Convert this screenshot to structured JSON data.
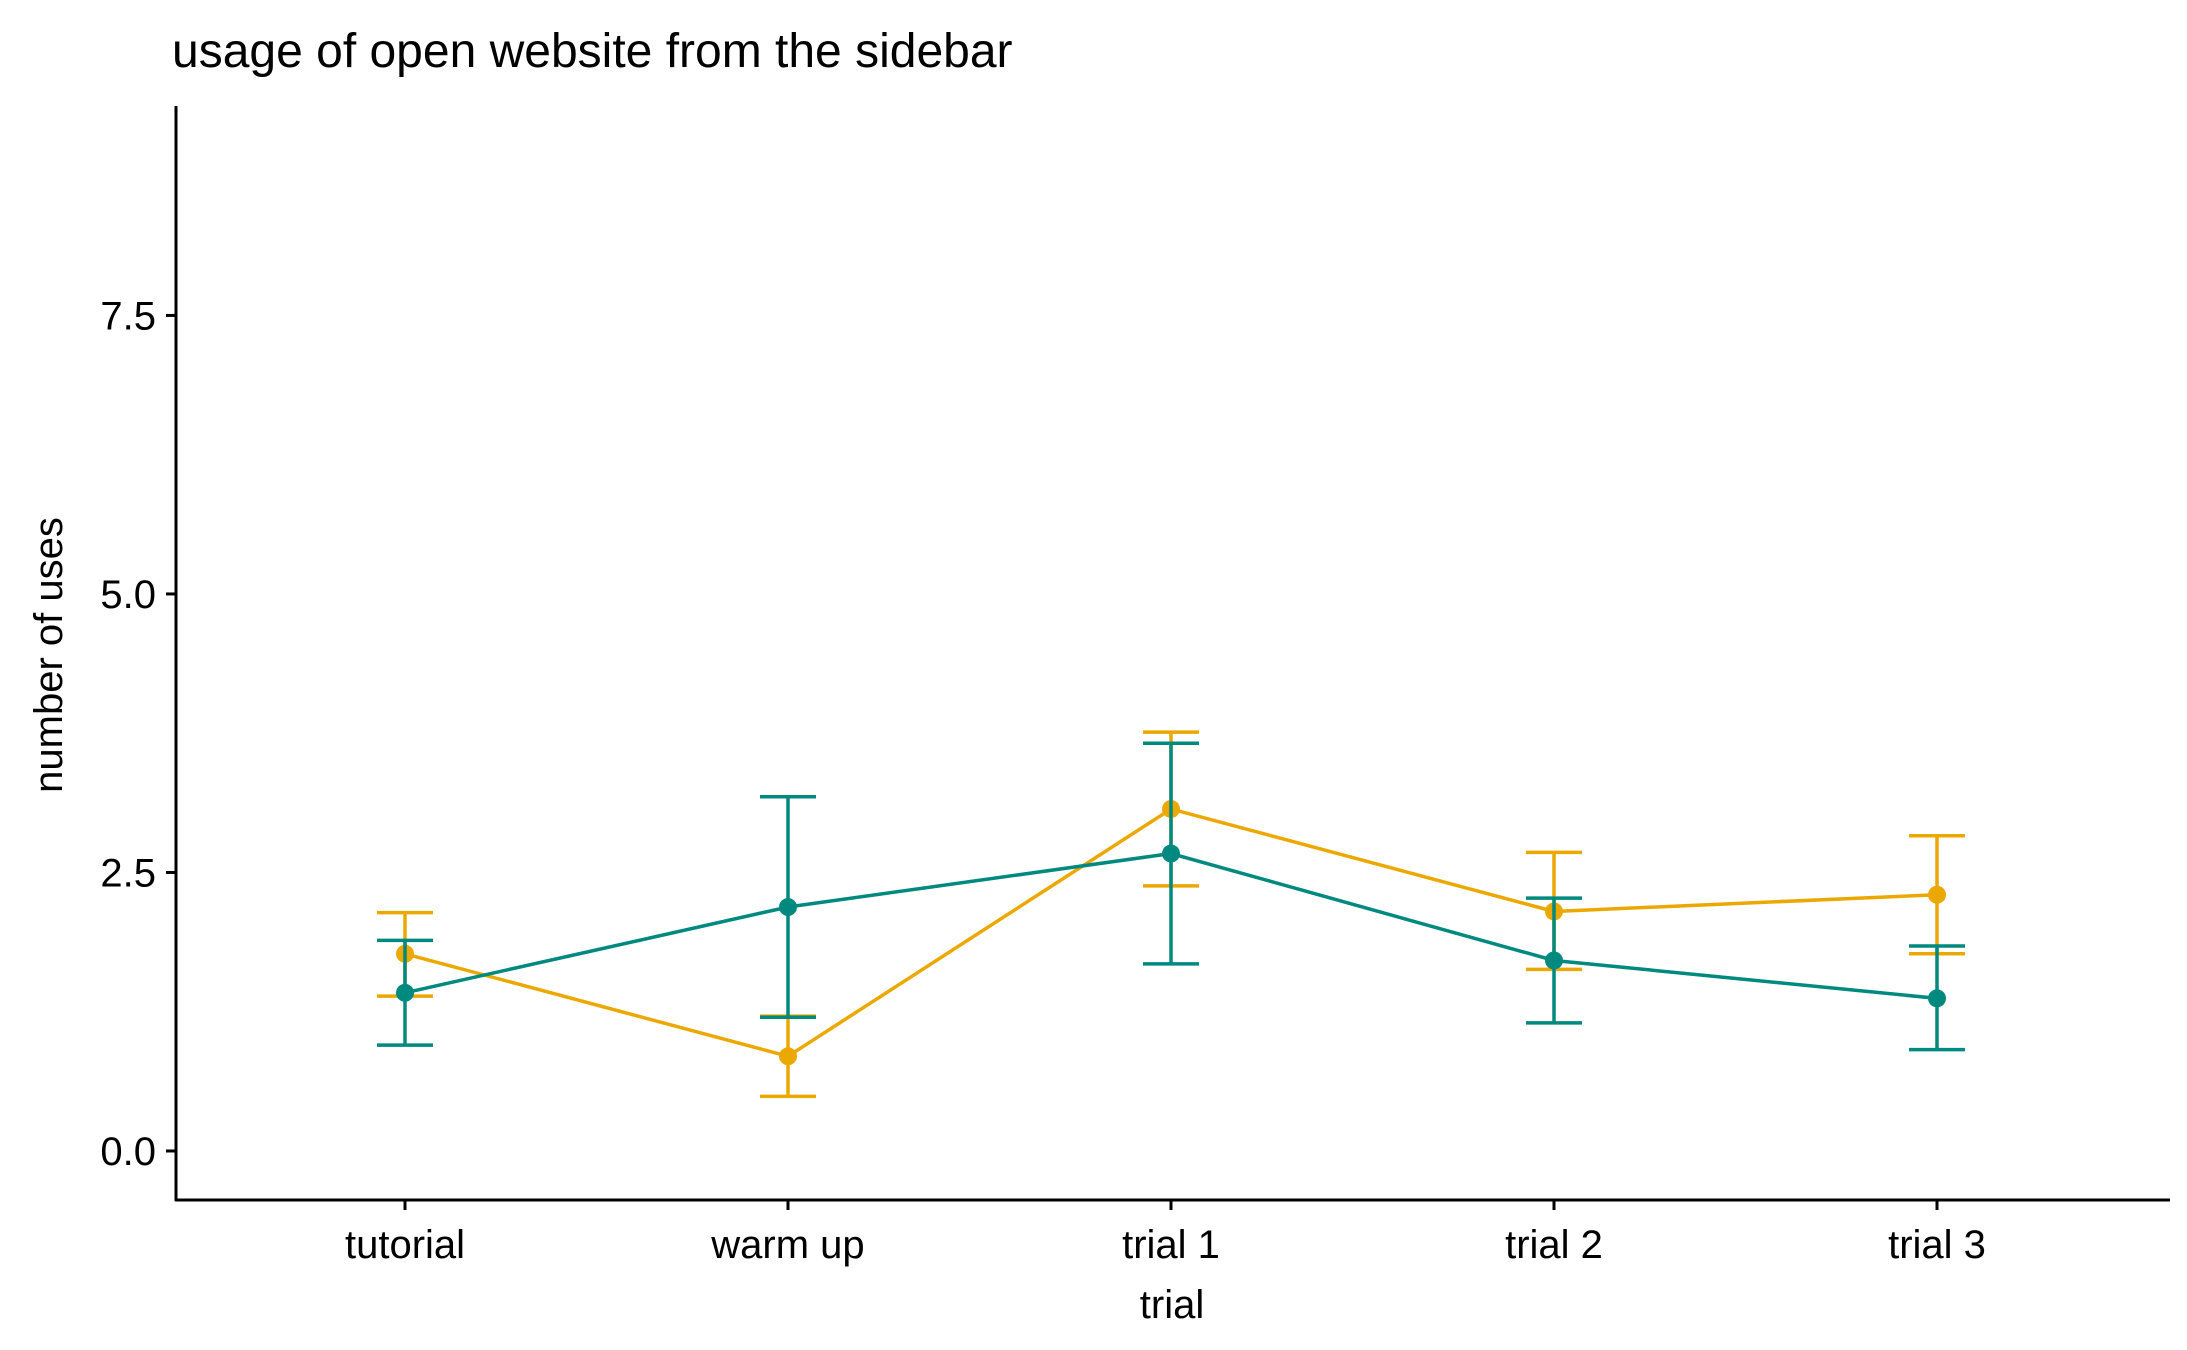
{
  "chart_data": {
    "type": "line",
    "title": "usage of open website from the sidebar",
    "xlabel": "trial",
    "ylabel": "number of uses",
    "categories": [
      "tutorial",
      "warm up",
      "trial 1",
      "trial 2",
      "trial 3"
    ],
    "ylim": [
      -0.44,
      9.38
    ],
    "yticks": [
      0.0,
      2.5,
      5.0,
      7.5
    ],
    "ytick_labels": [
      "0.0",
      "2.5",
      "5.0",
      "7.5"
    ],
    "grid": false,
    "legend": "none",
    "series": [
      {
        "color": "#EBA800",
        "values": [
          1.77,
          0.85,
          3.07,
          2.15,
          2.3
        ],
        "error_low": [
          1.39,
          0.49,
          2.38,
          1.63,
          1.77
        ],
        "error_high": [
          2.14,
          1.21,
          3.76,
          2.68,
          2.83
        ]
      },
      {
        "color": "#00897F",
        "values": [
          1.42,
          2.19,
          2.67,
          1.71,
          1.37
        ],
        "error_low": [
          0.95,
          1.2,
          1.68,
          1.15,
          0.91
        ],
        "error_high": [
          1.89,
          3.18,
          3.66,
          2.27,
          1.84
        ]
      }
    ]
  }
}
